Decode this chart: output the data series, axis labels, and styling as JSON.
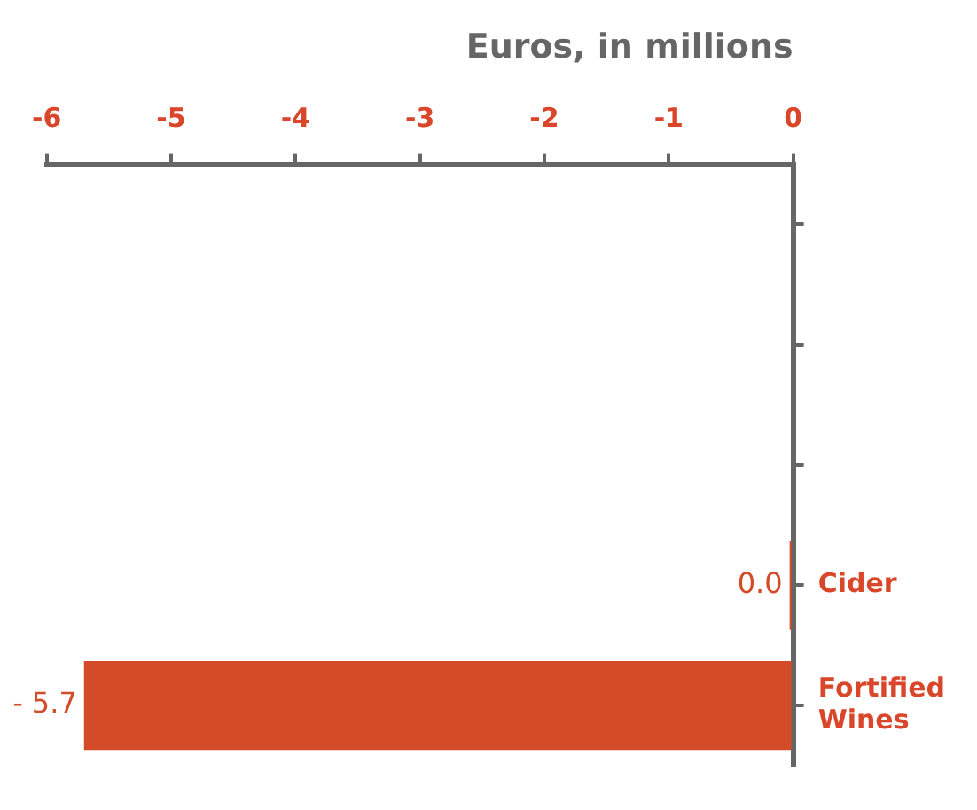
{
  "chart_data": {
    "type": "bar",
    "orientation": "horizontal",
    "xlabel": "Euros, in millions",
    "categories": [
      null,
      null,
      null,
      "Cider",
      "Fortified Wines"
    ],
    "series": [
      {
        "color": "#d34b28",
        "values": [
          null,
          null,
          null,
          0.0,
          -5.7
        ],
        "value_labels": [
          null,
          null,
          null,
          "0.0",
          "- 5.7"
        ]
      }
    ],
    "xlim": [
      -6,
      0
    ],
    "xticks": [
      -6,
      -5,
      -4,
      -3,
      -2,
      -1,
      0
    ],
    "grid": false,
    "legend": false
  }
}
